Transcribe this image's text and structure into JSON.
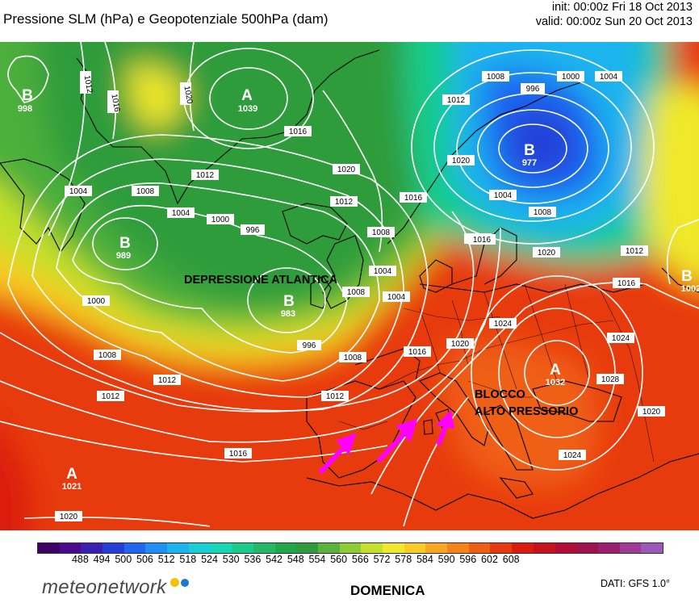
{
  "header": {
    "title": "Pressione SLM (hPa) e Geopotenziale 500hPa (dam)",
    "init": "init: 00:00z Fri 18 Oct 2013",
    "valid": "valid: 00:00z Sun 20 Oct 2013"
  },
  "map": {
    "annotations": {
      "low_atlantic": "DEPRESSIONE ATLANTICA",
      "high_block_line1": "BLOCCO",
      "high_block_line2": "ALTO PRESSORIO"
    },
    "pressure_centers": [
      {
        "letter": "B",
        "value": "998"
      },
      {
        "letter": "A",
        "value": "1039"
      },
      {
        "letter": "B",
        "value": "977"
      },
      {
        "letter": "B",
        "value": "989"
      },
      {
        "letter": "B",
        "value": "983"
      },
      {
        "letter": "B",
        "value": "1002"
      },
      {
        "letter": "A",
        "value": "1032"
      },
      {
        "letter": "A",
        "value": "1021"
      }
    ],
    "isobar_labels": [
      "1012",
      "1016",
      "1020",
      "1016",
      "1012",
      "1008",
      "1004",
      "1000",
      "996",
      "1008",
      "1004",
      "996",
      "1012",
      "1016",
      "1020",
      "1012",
      "1008",
      "1004",
      "996",
      "1000",
      "1020",
      "1012",
      "1004",
      "1004",
      "1008",
      "1000",
      "1008",
      "1012",
      "1016",
      "1020",
      "1024",
      "1012",
      "1016",
      "1020",
      "1024",
      "1028",
      "1024",
      "1020",
      "1016",
      "1012",
      "1008",
      "1004",
      "1020",
      "1016",
      "1024",
      "1012",
      "1008"
    ],
    "arrow_color": "#ff00ff"
  },
  "legend": {
    "colors": [
      "#3d0066",
      "#4a0a8c",
      "#3a1fb4",
      "#2240d8",
      "#1f66f0",
      "#1e90f5",
      "#1cb4ef",
      "#17cfd8",
      "#12d8b8",
      "#19cc8a",
      "#22b866",
      "#1fa84a",
      "#2e9c3a",
      "#58b43a",
      "#8ccc36",
      "#c4e02a",
      "#f0e82a",
      "#f8cc22",
      "#f8a81e",
      "#f48418",
      "#f05e14",
      "#e83a10",
      "#dc1a10",
      "#c8101e",
      "#b40c38",
      "#a0124e",
      "#9c1e6e",
      "#a03a96",
      "#9c58b8"
    ],
    "labels": [
      "488",
      "494",
      "500",
      "506",
      "512",
      "518",
      "524",
      "530",
      "536",
      "542",
      "548",
      "554",
      "560",
      "566",
      "572",
      "578",
      "584",
      "590",
      "596",
      "602",
      "608"
    ]
  },
  "footer": {
    "logo": "meteonetwork",
    "day": "DOMENICA",
    "source": "DATI: GFS 1.0°"
  }
}
